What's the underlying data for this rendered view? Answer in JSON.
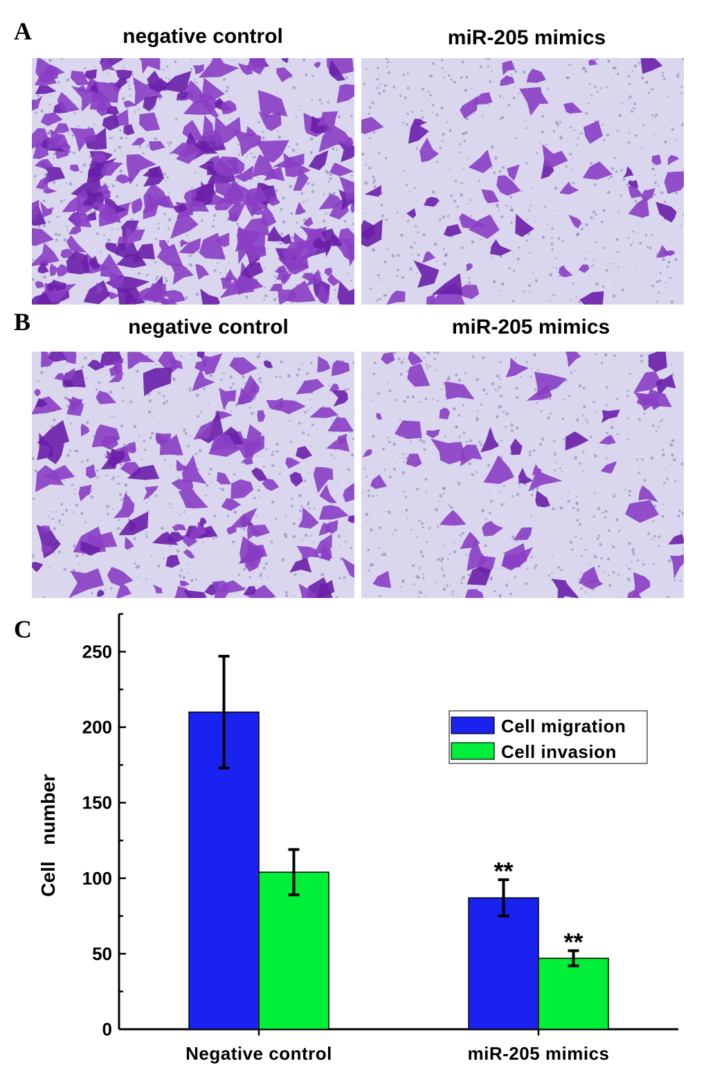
{
  "panels": {
    "a_label": "A",
    "b_label": "B",
    "c_label": "C",
    "a_left_title": "negative control",
    "a_right_title": "miR-205 mimics",
    "b_left_title": "negative control",
    "b_right_title": "miR-205 mimics"
  },
  "colors": {
    "stain": "#8a3ec4",
    "stain_dark": "#6a1fa8",
    "background": "#d9d6ee",
    "migration": "#1a22f0",
    "invasion": "#00f03a"
  },
  "chart_data": {
    "type": "bar",
    "categories": [
      "Negative control",
      "miR-205 mimics"
    ],
    "series": [
      {
        "name": "Cell migration",
        "values": [
          210,
          87
        ],
        "errors": [
          37,
          12
        ],
        "color": "#1a22f0"
      },
      {
        "name": "Cell invasion",
        "values": [
          104,
          47
        ],
        "errors": [
          15,
          5
        ],
        "color": "#00f03a"
      }
    ],
    "annotations": [
      {
        "category": "miR-205 mimics",
        "series": "Cell migration",
        "text": "**"
      },
      {
        "category": "miR-205 mimics",
        "series": "Cell invasion",
        "text": "**"
      }
    ],
    "ylabel": "Cell   number",
    "xlabel": "",
    "ylim": [
      0,
      275
    ],
    "yticks": [
      0,
      50,
      100,
      150,
      200,
      250
    ],
    "legend_position": "top-right",
    "grid": false
  }
}
